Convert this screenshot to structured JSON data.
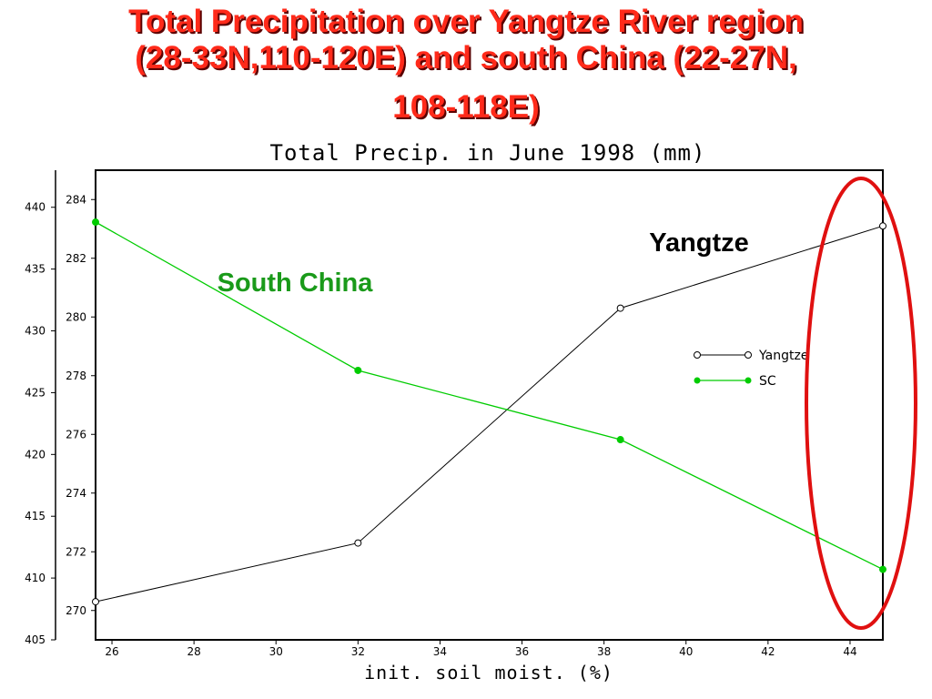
{
  "slide_title": {
    "line1": "Total Precipitation over Yangtze River region",
    "line2": "(28-33N,110-120E) and south China (22-27N,",
    "line3": "108-118E)"
  },
  "chart_data": {
    "type": "line",
    "title": "Total Precip. in June 1998 (mm)",
    "xlabel": "init. soil moist. (%)",
    "xlim": [
      25.6,
      44.8
    ],
    "x_ticks": [
      26,
      28,
      30,
      32,
      34,
      36,
      38,
      40,
      42,
      44
    ],
    "left_axis": {
      "ylim": [
        405,
        443
      ],
      "ticks": [
        405,
        410,
        415,
        420,
        425,
        430,
        435,
        440
      ]
    },
    "right_axis": {
      "ylim": [
        269,
        285
      ],
      "ticks": [
        270,
        272,
        274,
        276,
        278,
        280,
        282,
        284
      ]
    },
    "series": [
      {
        "name": "Yangtze",
        "axis": "right",
        "color": "#000000",
        "marker": "open-circle",
        "x": [
          25.6,
          32.0,
          38.4,
          44.8
        ],
        "y": [
          270.3,
          272.3,
          280.3,
          283.1
        ]
      },
      {
        "name": "SC",
        "axis": "left",
        "color": "#00cc00",
        "marker": "filled-circle",
        "x": [
          25.6,
          32.0,
          38.4,
          44.8
        ],
        "y": [
          438.8,
          426.8,
          421.2,
          410.7
        ]
      }
    ],
    "legend": {
      "placement": "center-right",
      "items": [
        "Yangtze",
        "SC"
      ]
    },
    "annotations": [
      {
        "text": "Yangtze",
        "color": "#000000"
      },
      {
        "text": "South China",
        "color": "#1a9a1a"
      }
    ],
    "highlight_ellipse": {
      "color": "#e01010",
      "note": "circles the last point"
    },
    "grid": false
  }
}
